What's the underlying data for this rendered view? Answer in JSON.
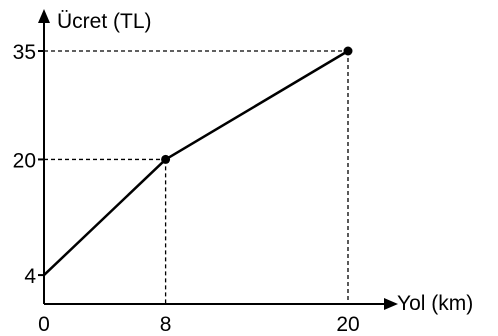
{
  "chart_data": {
    "type": "line",
    "title": "",
    "xlabel": "Yol (km)",
    "ylabel": "Ücret (TL)",
    "xlim": [
      0,
      20
    ],
    "ylim": [
      0,
      35
    ],
    "x_ticks": [
      {
        "value": 0,
        "label": "0"
      },
      {
        "value": 8,
        "label": "8"
      },
      {
        "value": 20,
        "label": "20"
      }
    ],
    "y_ticks": [
      {
        "value": 4,
        "label": "4"
      },
      {
        "value": 20,
        "label": "20"
      },
      {
        "value": 35,
        "label": "35"
      }
    ],
    "series": [
      {
        "points": [
          {
            "x": 0,
            "y": 4
          },
          {
            "x": 8,
            "y": 20
          },
          {
            "x": 20,
            "y": 35
          }
        ]
      }
    ],
    "guide_lines": [
      {
        "x": 8,
        "y": 20
      },
      {
        "x": 20,
        "y": 35
      }
    ],
    "markers": [
      {
        "x": 8,
        "y": 20
      },
      {
        "x": 20,
        "y": 35
      }
    ],
    "grid": false,
    "color": "#000000"
  }
}
